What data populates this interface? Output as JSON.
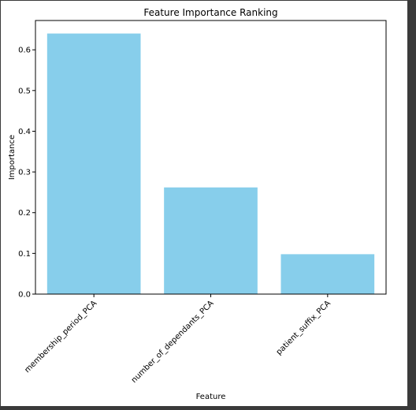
{
  "chart_data": {
    "type": "bar",
    "title": "Feature Importance Ranking",
    "xlabel": "Feature",
    "ylabel": "Importance",
    "categories": [
      "membership_period_PCA",
      "number_of_dependants_PCA",
      "patient_suffix_PCA"
    ],
    "values": [
      0.64,
      0.262,
      0.098
    ],
    "ylim": [
      0,
      0.672
    ],
    "yticks": [
      0.0,
      0.1,
      0.2,
      0.3,
      0.4,
      0.5,
      0.6
    ],
    "ytick_labels": [
      "0.0",
      "0.1",
      "0.2",
      "0.3",
      "0.4",
      "0.5",
      "0.6"
    ],
    "grid": false,
    "colors": {
      "bar": "#87ceeb",
      "axis": "#000000"
    }
  }
}
